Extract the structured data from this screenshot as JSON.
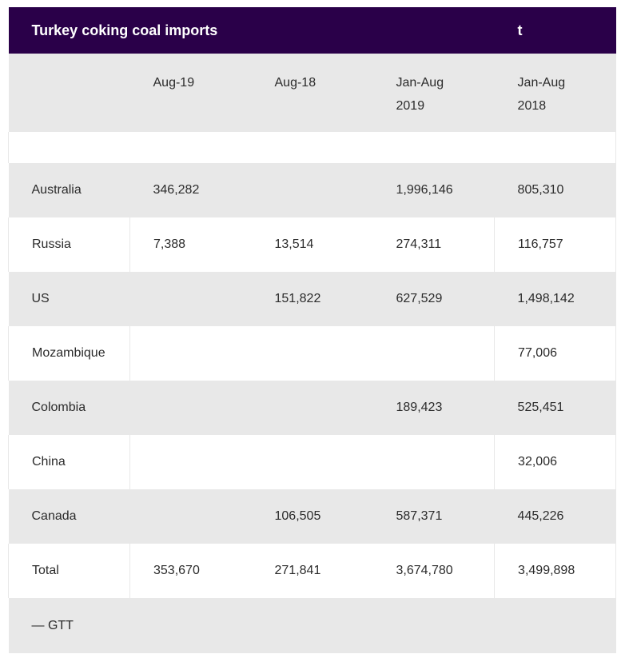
{
  "table": {
    "title": "Turkey coking coal imports",
    "unit": "t",
    "columns": [
      "",
      "Aug-19",
      "Aug-18",
      "Jan-Aug 2019",
      "Jan-Aug 2018"
    ],
    "column_lines": [
      [
        ""
      ],
      [
        "Aug-19"
      ],
      [
        "Aug-18"
      ],
      [
        "Jan-Aug",
        "2019"
      ],
      [
        "Jan-Aug",
        "2018"
      ]
    ],
    "rows": [
      [
        "Australia",
        "346,282",
        "",
        "1,996,146",
        "805,310"
      ],
      [
        "Russia",
        "7,388",
        "13,514",
        "274,311",
        "116,757"
      ],
      [
        "US",
        "",
        "151,822",
        "627,529",
        "1,498,142"
      ],
      [
        "Mozambique",
        "",
        "",
        "",
        "77,006"
      ],
      [
        "Colombia",
        "",
        "",
        "189,423",
        "525,451"
      ],
      [
        "China",
        "",
        "",
        "",
        "32,006"
      ],
      [
        "Canada",
        "",
        "106,505",
        "587,371",
        "445,226"
      ],
      [
        "Total",
        "353,670",
        "271,841",
        "3,674,780",
        "3,499,898"
      ]
    ],
    "source": "— GTT"
  },
  "colors": {
    "header_bg": "#2a0049",
    "header_text": "#ffffff",
    "shade_bg": "#e8e8e8",
    "text": "#2b2b2b"
  }
}
